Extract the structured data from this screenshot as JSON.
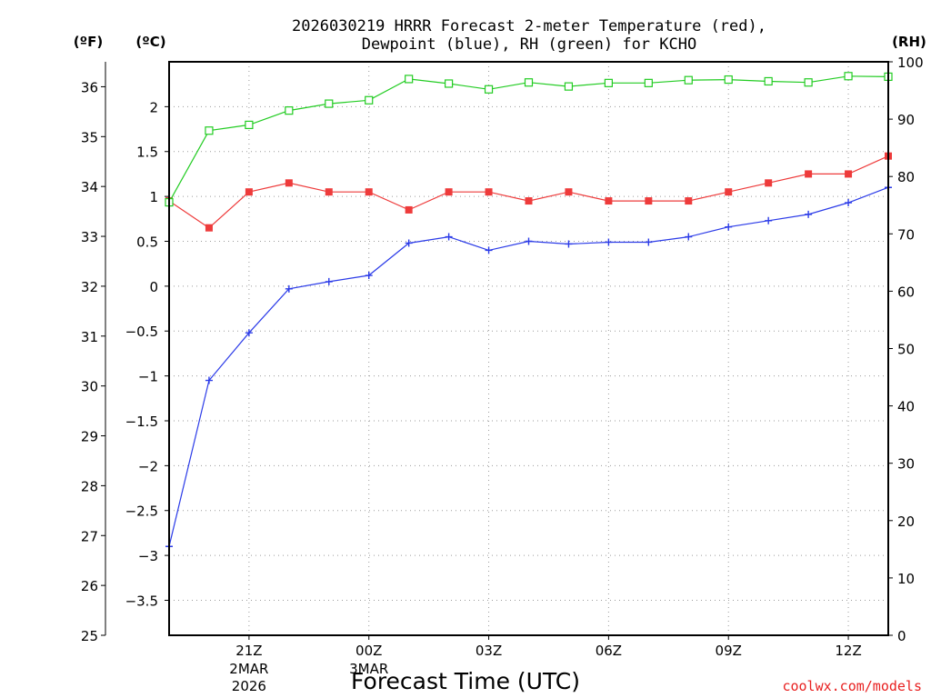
{
  "title_line1": "2026030219 HRRR Forecast 2-meter Temperature (red),",
  "title_line2": "Dewpoint (blue), RH (green) for KCHO",
  "xlabel": "Forecast Time (UTC)",
  "credit": "coolwx.com/models",
  "colors": {
    "temperature": "#ee3b3b",
    "dewpoint": "#2b3be8",
    "rh": "#22cc22",
    "credit": "#e82020"
  },
  "chart_data": {
    "type": "line",
    "x_hours_utc": [
      19,
      20,
      21,
      22,
      23,
      24,
      25,
      26,
      27,
      28,
      29,
      30,
      31,
      32,
      33,
      34,
      35,
      36,
      37
    ],
    "xlim": [
      19,
      37
    ],
    "x_ticks": [
      {
        "hour": 21,
        "label": "21Z",
        "sub1": "2MAR",
        "sub2": "2026"
      },
      {
        "hour": 24,
        "label": "00Z",
        "sub1": "3MAR",
        "sub2": ""
      },
      {
        "hour": 27,
        "label": "03Z",
        "sub1": "",
        "sub2": ""
      },
      {
        "hour": 30,
        "label": "06Z",
        "sub1": "",
        "sub2": ""
      },
      {
        "hour": 33,
        "label": "09Z",
        "sub1": "",
        "sub2": ""
      },
      {
        "hour": 36,
        "label": "12Z",
        "sub1": "",
        "sub2": ""
      }
    ],
    "y_left_F": {
      "unit_label": "(ºF)",
      "range": [
        25,
        36.5
      ],
      "ticks": [
        25,
        26,
        27,
        28,
        29,
        30,
        31,
        32,
        33,
        34,
        35,
        36
      ]
    },
    "y_left_C": {
      "unit_label": "(ºC)",
      "range": [
        -3.89,
        2.5
      ],
      "ticks": [
        -3.5,
        -3,
        -2.5,
        -2,
        -1.5,
        -1,
        -0.5,
        0,
        0.5,
        1,
        1.5,
        2
      ],
      "tick_labels": [
        "−3.5",
        "−3",
        "−2.5",
        "−2",
        "−1.5",
        "−1",
        "−0.5",
        "0",
        "0.5",
        "1",
        "1.5",
        "2"
      ]
    },
    "y_right_RH": {
      "unit_label": "(RH)",
      "range": [
        0,
        100
      ],
      "ticks": [
        0,
        10,
        20,
        30,
        40,
        50,
        60,
        70,
        80,
        90,
        100
      ]
    },
    "series": [
      {
        "name": "Temperature",
        "axis": "C",
        "marker": "filled-square",
        "values": [
          0.95,
          0.65,
          1.05,
          1.15,
          1.05,
          1.05,
          0.85,
          1.05,
          1.05,
          0.95,
          1.05,
          0.95,
          0.95,
          0.95,
          1.05,
          1.15,
          1.25,
          1.25,
          1.45
        ]
      },
      {
        "name": "Dewpoint",
        "axis": "C",
        "marker": "plus",
        "values": [
          -2.9,
          -1.05,
          -0.52,
          -0.03,
          0.05,
          0.12,
          0.48,
          0.55,
          0.4,
          0.5,
          0.47,
          0.49,
          0.49,
          0.55,
          0.66,
          0.73,
          0.8,
          0.93,
          1.1
        ]
      },
      {
        "name": "RH",
        "axis": "RH",
        "marker": "open-square",
        "values": [
          75.5,
          88,
          89,
          91.5,
          92.7,
          93.3,
          97,
          96.2,
          95.2,
          96.4,
          95.7,
          96.3,
          96.3,
          96.8,
          96.9,
          96.6,
          96.4,
          97.5,
          97.4
        ]
      }
    ]
  }
}
